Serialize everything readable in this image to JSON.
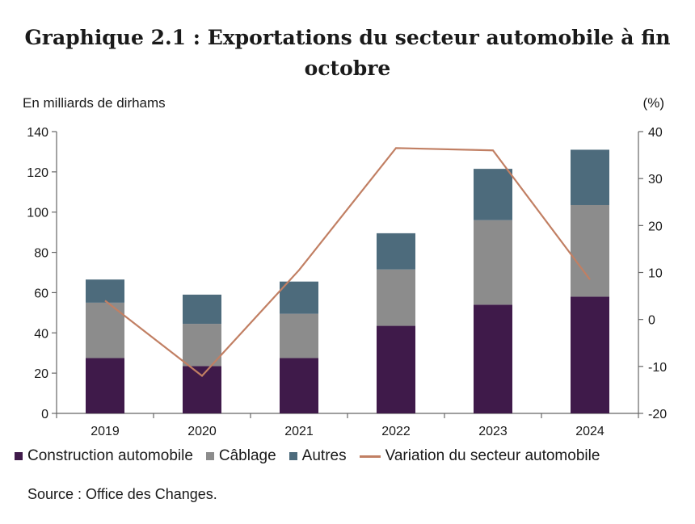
{
  "title": "Graphique 2.1 : Exportations du secteur automobile à fin octobre",
  "chart_data": {
    "type": "bar",
    "stacked": true,
    "categories": [
      "2019",
      "2020",
      "2021",
      "2022",
      "2023",
      "2024"
    ],
    "series": [
      {
        "name": "Construction automobile",
        "color": "#3f1a4a",
        "values": [
          27.5,
          23.5,
          27.5,
          43.5,
          54.0,
          58.0
        ]
      },
      {
        "name": "Câblage",
        "color": "#8c8c8c",
        "values": [
          27.5,
          21.0,
          22.0,
          28.0,
          42.0,
          45.5
        ]
      },
      {
        "name": "Autres",
        "color": "#4d6b7c",
        "values": [
          11.5,
          14.5,
          16.0,
          18.0,
          25.5,
          27.5
        ]
      }
    ],
    "line_series": {
      "name": "Variation du secteur automobile",
      "color": "#c17f63",
      "axis": "right",
      "values": [
        4.0,
        -12.0,
        10.5,
        36.5,
        36.0,
        8.5
      ]
    },
    "ylim": [
      0,
      140
    ],
    "yticks": [
      "0",
      "20",
      "40",
      "60",
      "80",
      "100",
      "120",
      "140"
    ],
    "y2lim": [
      -20,
      40
    ],
    "y2ticks": [
      "-20",
      "-10",
      "0",
      "10",
      "20",
      "30",
      "40"
    ],
    "ylabel": "En milliards de dirhams",
    "y2label": "(%)",
    "legend_position": "bottom"
  },
  "source": "Source : Office des Changes."
}
